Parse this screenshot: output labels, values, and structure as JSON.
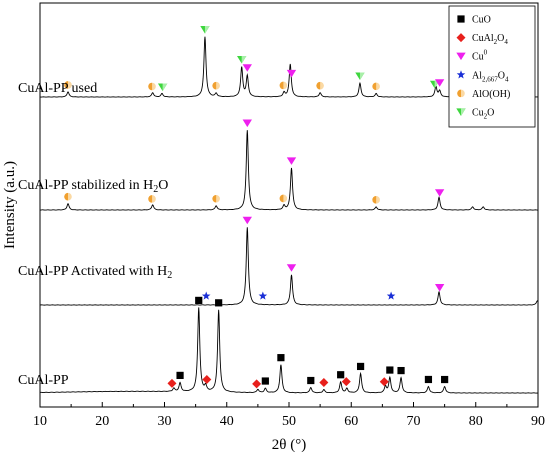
{
  "chart_data": {
    "type": "line",
    "xlabel": "2θ (°)",
    "ylabel": "Intensity (a.u.)",
    "xlim": [
      10,
      90
    ],
    "x_ticks": [
      "10",
      "20",
      "30",
      "40",
      "50",
      "60",
      "70",
      "80",
      "90"
    ],
    "x_tick_values": [
      10,
      20,
      30,
      40,
      50,
      60,
      70,
      80,
      90
    ],
    "legend": {
      "placement": "top-right",
      "entries": [
        {
          "key": "cuo",
          "label": "CuO",
          "marker": "square",
          "color": "#000000",
          "label_parts": [
            {
              "t": "CuO"
            }
          ]
        },
        {
          "key": "cual2o4",
          "label": "CuAl2O4",
          "marker": "diamond",
          "color": "#e8201c",
          "label_parts": [
            {
              "t": "CuAl"
            },
            {
              "t": "2",
              "sub": true
            },
            {
              "t": "O"
            },
            {
              "t": "4",
              "sub": true
            }
          ]
        },
        {
          "key": "cu0",
          "label": "Cu0",
          "marker": "triangle-down",
          "color": "#ee20ee",
          "label_parts": [
            {
              "t": "Cu"
            },
            {
              "t": "0",
              "sup": true
            }
          ]
        },
        {
          "key": "al2667o4",
          "label": "Al2,667O4",
          "marker": "star",
          "color": "#1a2fd6",
          "label_parts": [
            {
              "t": "Al"
            },
            {
              "t": "2,667",
              "sub": true
            },
            {
              "t": "O"
            },
            {
              "t": "4",
              "sub": true
            }
          ]
        },
        {
          "key": "aloooh",
          "label": "AlO(OH)",
          "marker": "half-circle",
          "color": "#f0a030",
          "label_parts": [
            {
              "t": "AlO(OH)"
            }
          ]
        },
        {
          "key": "cu2o",
          "label": "Cu2O",
          "marker": "triangle-down-split",
          "color": "#3ed63e",
          "label_parts": [
            {
              "t": "Cu"
            },
            {
              "t": "2",
              "sub": true
            },
            {
              "t": "O"
            }
          ]
        }
      ]
    },
    "series": [
      {
        "name": "CuAl-PP used",
        "label_parts": [
          {
            "t": "CuAl-PP used"
          }
        ],
        "peaks": [
          {
            "x": 14.5,
            "h": 6
          },
          {
            "x": 28.1,
            "h": 5
          },
          {
            "x": 29.6,
            "h": 4
          },
          {
            "x": 36.5,
            "h": 70
          },
          {
            "x": 38.3,
            "h": 4
          },
          {
            "x": 42.4,
            "h": 34
          },
          {
            "x": 43.3,
            "h": 24
          },
          {
            "x": 49.2,
            "h": 5
          },
          {
            "x": 50.2,
            "h": 38
          },
          {
            "x": 55.0,
            "h": 5
          },
          {
            "x": 61.4,
            "h": 16
          },
          {
            "x": 64.0,
            "h": 4
          },
          {
            "x": 73.6,
            "h": 12
          },
          {
            "x": 74.2,
            "h": 7
          },
          {
            "x": 76.5,
            "h": 3
          },
          {
            "x": 79.5,
            "h": 3
          },
          {
            "x": 81.2,
            "h": 3
          }
        ],
        "markers": [
          {
            "x": 14.5,
            "type": "aloooh"
          },
          {
            "x": 28.0,
            "type": "aloooh"
          },
          {
            "x": 29.7,
            "type": "cu2o"
          },
          {
            "x": 36.5,
            "type": "cu2o"
          },
          {
            "x": 38.3,
            "type": "aloooh"
          },
          {
            "x": 42.4,
            "type": "cu2o"
          },
          {
            "x": 43.3,
            "type": "cu0"
          },
          {
            "x": 49.1,
            "type": "aloooh"
          },
          {
            "x": 50.4,
            "type": "cu0"
          },
          {
            "x": 55.0,
            "type": "aloooh"
          },
          {
            "x": 61.4,
            "type": "cu2o"
          },
          {
            "x": 64.0,
            "type": "aloooh"
          },
          {
            "x": 73.4,
            "type": "cu2o"
          },
          {
            "x": 74.2,
            "type": "cu0"
          }
        ]
      },
      {
        "name": "CuAl-PP stabilized in H2O",
        "label_parts": [
          {
            "t": "CuAl-PP stabilized in H"
          },
          {
            "t": "2",
            "sub": true
          },
          {
            "t": "O"
          }
        ],
        "peaks": [
          {
            "x": 14.5,
            "h": 6
          },
          {
            "x": 28.1,
            "h": 5
          },
          {
            "x": 38.3,
            "h": 4
          },
          {
            "x": 43.3,
            "h": 76
          },
          {
            "x": 49.2,
            "h": 4
          },
          {
            "x": 50.4,
            "h": 40
          },
          {
            "x": 64.0,
            "h": 3
          },
          {
            "x": 74.1,
            "h": 12
          },
          {
            "x": 79.5,
            "h": 3
          },
          {
            "x": 81.2,
            "h": 3
          }
        ],
        "markers": [
          {
            "x": 14.5,
            "type": "aloooh"
          },
          {
            "x": 28.0,
            "type": "aloooh"
          },
          {
            "x": 38.3,
            "type": "aloooh"
          },
          {
            "x": 43.3,
            "type": "cu0"
          },
          {
            "x": 49.1,
            "type": "aloooh"
          },
          {
            "x": 50.4,
            "type": "cu0"
          },
          {
            "x": 64.0,
            "type": "aloooh"
          },
          {
            "x": 74.2,
            "type": "cu0"
          }
        ]
      },
      {
        "name": "CuAl-PP Activated with H2",
        "label_parts": [
          {
            "t": "CuAl-PP Activated with H"
          },
          {
            "t": "2",
            "sub": true
          }
        ],
        "peaks": [
          {
            "x": 43.3,
            "h": 72
          },
          {
            "x": 50.4,
            "h": 28
          },
          {
            "x": 74.1,
            "h": 12
          },
          {
            "x": 89.9,
            "h": 4
          }
        ],
        "markers": [
          {
            "x": 36.7,
            "type": "al2667o4"
          },
          {
            "x": 43.3,
            "type": "cu0"
          },
          {
            "x": 45.8,
            "type": "al2667o4"
          },
          {
            "x": 50.4,
            "type": "cu0"
          },
          {
            "x": 66.4,
            "type": "al2667o4"
          },
          {
            "x": 74.2,
            "type": "cu0"
          }
        ]
      },
      {
        "name": "CuAl-PP",
        "label_parts": [
          {
            "t": "CuAl-PP"
          }
        ],
        "peaks": [
          {
            "x": 31.5,
            "h": 3
          },
          {
            "x": 32.5,
            "h": 8
          },
          {
            "x": 35.5,
            "h": 78
          },
          {
            "x": 36.6,
            "h": 5
          },
          {
            "x": 38.7,
            "h": 76
          },
          {
            "x": 45.0,
            "h": 3
          },
          {
            "x": 46.2,
            "h": 4
          },
          {
            "x": 48.7,
            "h": 26
          },
          {
            "x": 53.5,
            "h": 5
          },
          {
            "x": 55.6,
            "h": 3
          },
          {
            "x": 58.3,
            "h": 10
          },
          {
            "x": 59.3,
            "h": 4
          },
          {
            "x": 61.5,
            "h": 18
          },
          {
            "x": 65.5,
            "h": 6
          },
          {
            "x": 66.2,
            "h": 14
          },
          {
            "x": 68.0,
            "h": 14
          },
          {
            "x": 72.4,
            "h": 6
          },
          {
            "x": 75.0,
            "h": 6
          }
        ],
        "markers": [
          {
            "x": 31.2,
            "type": "cual2o4"
          },
          {
            "x": 32.5,
            "type": "cuo"
          },
          {
            "x": 35.5,
            "type": "cuo"
          },
          {
            "x": 36.8,
            "type": "cual2o4"
          },
          {
            "x": 38.7,
            "type": "cuo"
          },
          {
            "x": 44.8,
            "type": "cual2o4"
          },
          {
            "x": 46.2,
            "type": "cuo"
          },
          {
            "x": 48.7,
            "type": "cuo"
          },
          {
            "x": 53.5,
            "type": "cuo"
          },
          {
            "x": 55.6,
            "type": "cual2o4"
          },
          {
            "x": 58.3,
            "type": "cuo"
          },
          {
            "x": 59.2,
            "type": "cual2o4"
          },
          {
            "x": 61.5,
            "type": "cuo"
          },
          {
            "x": 65.3,
            "type": "cual2o4"
          },
          {
            "x": 66.2,
            "type": "cuo"
          },
          {
            "x": 68.0,
            "type": "cuo"
          },
          {
            "x": 72.4,
            "type": "cuo"
          },
          {
            "x": 75.0,
            "type": "cuo"
          }
        ]
      }
    ]
  }
}
